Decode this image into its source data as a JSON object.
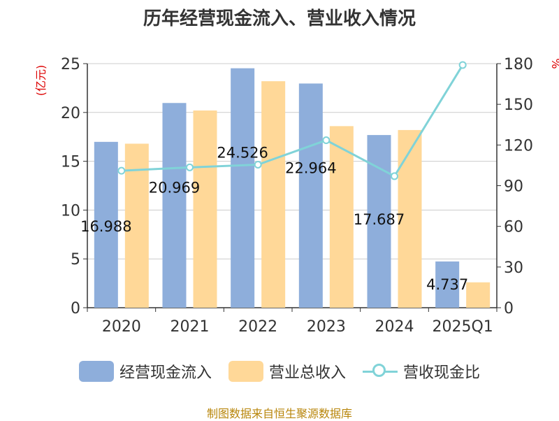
{
  "title": "历年经营现金流入、营业收入情况",
  "source": "制图数据来自恒生聚源数据库",
  "chart_data": {
    "type": "bar",
    "categories": [
      "2020",
      "2021",
      "2022",
      "2023",
      "2024",
      "2025Q1"
    ],
    "left_axis": {
      "label": "(亿元)",
      "ticks": [
        0,
        5,
        10,
        15,
        20,
        25
      ],
      "ylim": [
        0,
        25
      ]
    },
    "right_axis": {
      "label": "%",
      "ticks": [
        0,
        30,
        60,
        90,
        120,
        150,
        180
      ],
      "ylim": [
        0,
        180
      ]
    },
    "grid": true,
    "legend_position": "bottom",
    "series": [
      {
        "name": "经营现金流入",
        "kind": "bar",
        "axis": "left",
        "color": "#8eaedb",
        "values": [
          16.988,
          20.969,
          24.526,
          22.964,
          17.687,
          4.737
        ]
      },
      {
        "name": "营业总收入",
        "kind": "bar",
        "axis": "left",
        "color": "#ffd898",
        "values": [
          16.8,
          20.2,
          23.2,
          18.6,
          18.2,
          2.6
        ]
      },
      {
        "name": "营收现金比",
        "kind": "line",
        "axis": "right",
        "color": "#80d3d8",
        "values": [
          101,
          103.5,
          105.5,
          123.5,
          97,
          179
        ]
      }
    ],
    "data_labels": [
      "16.988",
      "20.969",
      "24.526",
      "22.964",
      "17.687",
      "4.737"
    ]
  }
}
